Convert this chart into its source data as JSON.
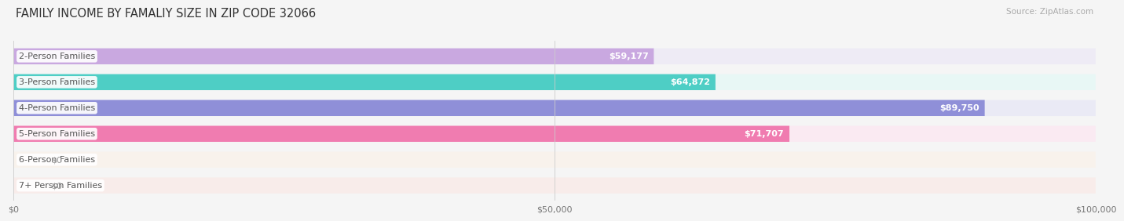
{
  "title": "FAMILY INCOME BY FAMALIY SIZE IN ZIP CODE 32066",
  "source": "Source: ZipAtlas.com",
  "categories": [
    "2-Person Families",
    "3-Person Families",
    "4-Person Families",
    "5-Person Families",
    "6-Person Families",
    "7+ Person Families"
  ],
  "values": [
    59177,
    64872,
    89750,
    71707,
    0,
    0
  ],
  "bar_colors": [
    "#c9a8e0",
    "#4ecec5",
    "#8f8fd8",
    "#f07cb0",
    "#f5c89a",
    "#f09090"
  ],
  "bg_colors": [
    "#eeebf5",
    "#e8f7f5",
    "#eaeaf5",
    "#faeaf2",
    "#f8f2ec",
    "#f8ecea"
  ],
  "xlim": [
    0,
    100000
  ],
  "xticks": [
    0,
    50000,
    100000
  ],
  "xtick_labels": [
    "$0",
    "$50,000",
    "$100,000"
  ],
  "value_labels": [
    "$59,177",
    "$64,872",
    "$89,750",
    "$71,707",
    "$0",
    "$0"
  ],
  "background_color": "#f5f5f5",
  "title_fontsize": 10.5,
  "bar_height": 0.62,
  "label_fontsize": 8.0,
  "value_fontsize": 8.0
}
